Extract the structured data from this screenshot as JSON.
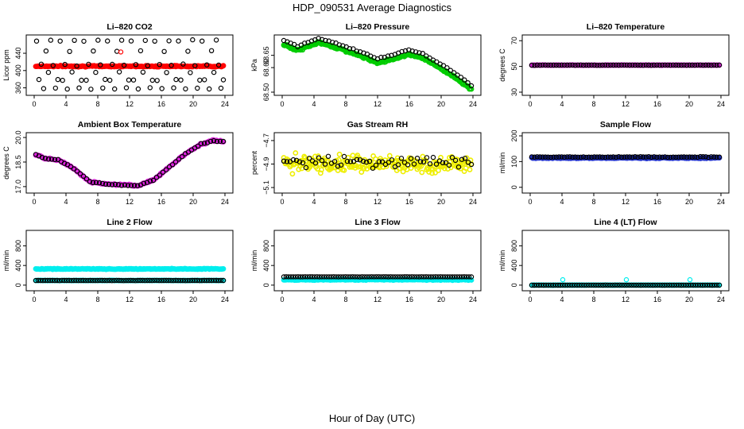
{
  "main_title": "HDP_090531  Average Diagnostics",
  "x_axis_title": "Hour of Day (UTC)",
  "chart_data": [
    {
      "type": "scatter",
      "title": "Li–820 CO2",
      "ylabel": "Licor ppm",
      "xlim": [
        0,
        24
      ],
      "ylim": [
        350,
        475
      ],
      "x_ticks": [
        "0",
        "4",
        "8",
        "12",
        "16",
        "20",
        "24"
      ],
      "y_ticks": [
        {
          "v": 360,
          "t": "360"
        },
        {
          "v": 400,
          "t": "400"
        },
        {
          "v": 440,
          "t": "440"
        }
      ],
      "series": [
        {
          "color": "#ff0000",
          "base": 410,
          "noise": 2,
          "kind": "band",
          "n": 190
        },
        {
          "color": "#000000",
          "kind": "rings",
          "pattern": [
            468,
            378,
            414,
            358,
            445,
            396,
            470,
            412,
            360,
            378
          ],
          "n": 80
        },
        {
          "color": "#ff0000",
          "kind": "rings",
          "points": [
            [
              10.9,
              443
            ]
          ]
        }
      ]
    },
    {
      "type": "scatter",
      "title": "Li–820 Pressure",
      "ylabel": "kPa",
      "xlim": [
        0,
        24
      ],
      "ylim": [
        68.5,
        68.72
      ],
      "x_ticks": [
        "0",
        "4",
        "8",
        "12",
        "16",
        "20",
        "24"
      ],
      "y_ticks": [
        {
          "v": 68.5,
          "t": "68.50"
        },
        {
          "v": 68.6,
          "t": "68.60"
        },
        {
          "v": 68.65,
          "t": "68.65"
        }
      ],
      "curve": [
        [
          0,
          68.7
        ],
        [
          2,
          68.675
        ],
        [
          4.5,
          68.707
        ],
        [
          7,
          68.685
        ],
        [
          10,
          68.65
        ],
        [
          12,
          68.625
        ],
        [
          14,
          68.64
        ],
        [
          16,
          68.66
        ],
        [
          18,
          68.64
        ],
        [
          20,
          68.6
        ],
        [
          22,
          68.56
        ],
        [
          24,
          68.51
        ]
      ],
      "series": [
        {
          "color": "#00cc00",
          "kind": "curve-band",
          "offset": -0.005,
          "noise": 0.006,
          "n": 200
        },
        {
          "color": "#000000",
          "kind": "curve-rings",
          "offset": 0.012,
          "noise": 0.004,
          "n": 55
        }
      ]
    },
    {
      "type": "scatter",
      "title": "Li–820 Temperature",
      "ylabel": "degrees C",
      "xlim": [
        0,
        24
      ],
      "ylim": [
        30,
        72
      ],
      "x_ticks": [
        "0",
        "4",
        "8",
        "12",
        "16",
        "20",
        "24"
      ],
      "y_ticks": [
        {
          "v": 30,
          "t": "30"
        },
        {
          "v": 50,
          "t": "50"
        },
        {
          "v": 70,
          "t": "70"
        }
      ],
      "series": [
        {
          "color": "#dd22dd",
          "base": 51,
          "noise": 0.2,
          "kind": "band",
          "n": 190
        },
        {
          "color": "#000000",
          "base": 51,
          "noise": 0.2,
          "kind": "rings-flat",
          "n": 70
        }
      ]
    },
    {
      "type": "scatter",
      "title": "Ambient Box Temperature",
      "ylabel": "degrees C",
      "xlim": [
        0,
        24
      ],
      "ylim": [
        16.8,
        20.1
      ],
      "x_ticks": [
        "0",
        "4",
        "8",
        "12",
        "16",
        "20",
        "24"
      ],
      "y_ticks": [
        {
          "v": 17,
          "t": "17.0"
        },
        {
          "v": 18.5,
          "t": "18.5"
        },
        {
          "v": 20,
          "t": "20.0"
        }
      ],
      "curve": [
        [
          0,
          19.0
        ],
        [
          1.5,
          18.7
        ],
        [
          3,
          18.65
        ],
        [
          5,
          18.1
        ],
        [
          7,
          17.3
        ],
        [
          9,
          17.15
        ],
        [
          11,
          17.1
        ],
        [
          13,
          17.05
        ],
        [
          15,
          17.4
        ],
        [
          17,
          18.2
        ],
        [
          19,
          19.0
        ],
        [
          21,
          19.6
        ],
        [
          22.5,
          19.8
        ],
        [
          24,
          19.75
        ]
      ],
      "series": [
        {
          "color": "#dd22dd",
          "kind": "curve-band",
          "offset": 0,
          "noise": 0.07,
          "n": 190
        },
        {
          "color": "#000000",
          "kind": "curve-rings",
          "offset": 0,
          "noise": 0.04,
          "n": 60
        }
      ]
    },
    {
      "type": "scatter",
      "title": "Gas Stream RH",
      "ylabel": "percent",
      "xlim": [
        0,
        24
      ],
      "ylim": [
        -5.12,
        -4.66
      ],
      "x_ticks": [
        "0",
        "4",
        "8",
        "12",
        "16",
        "20",
        "24"
      ],
      "y_ticks": [
        {
          "v": -5.1,
          "t": "−5.1"
        },
        {
          "v": -4.9,
          "t": "−4.9"
        },
        {
          "v": -4.7,
          "t": "−4.7"
        }
      ],
      "series": [
        {
          "color": "#eeee00",
          "base": -4.9,
          "noise": 0.1,
          "kind": "scatter",
          "n": 240
        },
        {
          "color": "#000000",
          "base": -4.88,
          "noise": 0.07,
          "kind": "scatter-rings",
          "n": 60
        }
      ]
    },
    {
      "type": "scatter",
      "title": "Sample Flow",
      "ylabel": "ml/min",
      "xlim": [
        0,
        24
      ],
      "ylim": [
        -10,
        200
      ],
      "x_ticks": [
        "0",
        "4",
        "8",
        "12",
        "16",
        "20",
        "24"
      ],
      "y_ticks": [
        {
          "v": 0,
          "t": "0"
        },
        {
          "v": 100,
          "t": "100"
        },
        {
          "v": 200,
          "t": "200"
        }
      ],
      "series": [
        {
          "color": "#2233cc",
          "base": 114,
          "noise": 3,
          "kind": "band",
          "n": 190
        },
        {
          "color": "#000000",
          "base": 118,
          "noise": 2,
          "kind": "rings-flat",
          "n": 70
        }
      ]
    },
    {
      "type": "scatter",
      "title": "Line 2 Flow",
      "ylabel": "ml/min",
      "xlim": [
        0,
        24
      ],
      "ylim": [
        -50,
        1050
      ],
      "x_ticks": [
        "0",
        "4",
        "8",
        "12",
        "16",
        "20",
        "24"
      ],
      "y_ticks": [
        {
          "v": 0,
          "t": "0"
        },
        {
          "v": 400,
          "t": "400"
        },
        {
          "v": 800,
          "t": "800"
        }
      ],
      "series": [
        {
          "color": "#00eeee",
          "base": 330,
          "noise": 12,
          "kind": "band",
          "n": 190
        },
        {
          "color": "#00eeee",
          "base": 95,
          "noise": 4,
          "kind": "band",
          "n": 190
        },
        {
          "color": "#000000",
          "base": 95,
          "noise": 3,
          "kind": "rings-flat",
          "n": 80
        }
      ]
    },
    {
      "type": "scatter",
      "title": "Line 3 Flow",
      "ylabel": "ml/min",
      "xlim": [
        0,
        24
      ],
      "ylim": [
        -50,
        1050
      ],
      "x_ticks": [
        "0",
        "4",
        "8",
        "12",
        "16",
        "20",
        "24"
      ],
      "y_ticks": [
        {
          "v": 0,
          "t": "0"
        },
        {
          "v": 400,
          "t": "400"
        },
        {
          "v": 800,
          "t": "800"
        }
      ],
      "series": [
        {
          "color": "#00eeee",
          "base": 110,
          "noise": 14,
          "kind": "band",
          "n": 190
        },
        {
          "color": "#000000",
          "base": 170,
          "noise": 3,
          "kind": "rings-flat",
          "n": 80
        }
      ]
    },
    {
      "type": "scatter",
      "title": "Line 4 (LT) Flow",
      "ylabel": "ml/min",
      "xlim": [
        0,
        24
      ],
      "ylim": [
        -50,
        1050
      ],
      "x_ticks": [
        "0",
        "4",
        "8",
        "12",
        "16",
        "20",
        "24"
      ],
      "y_ticks": [
        {
          "v": 0,
          "t": "0"
        },
        {
          "v": 400,
          "t": "400"
        },
        {
          "v": 800,
          "t": "800"
        }
      ],
      "series": [
        {
          "color": "#00eeee",
          "base": 0,
          "noise": 3,
          "kind": "band",
          "n": 190
        },
        {
          "color": "#000000",
          "base": 0,
          "noise": 2,
          "kind": "rings-flat",
          "n": 80
        },
        {
          "color": "#00eeee",
          "kind": "rings",
          "points": [
            [
              4.1,
              110
            ],
            [
              12.1,
              110
            ],
            [
              20.1,
              110
            ]
          ]
        }
      ]
    }
  ]
}
